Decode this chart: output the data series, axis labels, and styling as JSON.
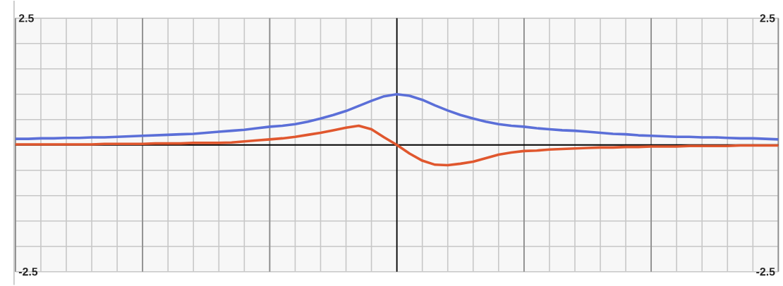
{
  "chart_data": {
    "type": "line",
    "categories": [
      null,
      null,
      null,
      null,
      null,
      null,
      null,
      null,
      null,
      null,
      null,
      null,
      null,
      null,
      null,
      null,
      null,
      null,
      null,
      null,
      null,
      null,
      null,
      null,
      null,
      null,
      null,
      null,
      null,
      null,
      null,
      null,
      null,
      null,
      null,
      null,
      null,
      null,
      null,
      null,
      null,
      null,
      null,
      null,
      null,
      null,
      null,
      null,
      null,
      null,
      null,
      null,
      null,
      null,
      null,
      null,
      null,
      null,
      null,
      null,
      null
    ],
    "series": [
      {
        "color": "#5b6fd8",
        "values": [
          0.12,
          0.12,
          0.13,
          0.13,
          0.14,
          0.14,
          0.15,
          0.15,
          0.16,
          0.17,
          0.18,
          0.19,
          0.2,
          0.21,
          0.22,
          0.24,
          0.26,
          0.28,
          0.3,
          0.33,
          0.36,
          0.38,
          0.41,
          0.46,
          0.52,
          0.59,
          0.67,
          0.77,
          0.87,
          0.96,
          1.0,
          0.97,
          0.89,
          0.78,
          0.68,
          0.59,
          0.52,
          0.46,
          0.41,
          0.38,
          0.36,
          0.33,
          0.31,
          0.29,
          0.28,
          0.26,
          0.24,
          0.22,
          0.21,
          0.19,
          0.18,
          0.17,
          0.16,
          0.16,
          0.15,
          0.15,
          0.14,
          0.13,
          0.13,
          0.12,
          0.11
        ]
      },
      {
        "color": "#e0572e",
        "values": [
          0.01,
          0.01,
          0.01,
          0.01,
          0.01,
          0.01,
          0.01,
          0.02,
          0.02,
          0.02,
          0.02,
          0.03,
          0.03,
          0.03,
          0.04,
          0.04,
          0.04,
          0.05,
          0.07,
          0.09,
          0.11,
          0.13,
          0.16,
          0.2,
          0.24,
          0.29,
          0.34,
          0.38,
          0.31,
          0.15,
          0,
          -0.17,
          -0.31,
          -0.39,
          -0.4,
          -0.37,
          -0.33,
          -0.26,
          -0.19,
          -0.15,
          -0.12,
          -0.11,
          -0.09,
          -0.08,
          -0.07,
          -0.06,
          -0.05,
          -0.05,
          -0.04,
          -0.04,
          -0.03,
          -0.03,
          -0.03,
          -0.02,
          -0.02,
          -0.02,
          -0.02,
          -0.01,
          -0.01,
          -0.01,
          -0.01
        ]
      }
    ],
    "ylim": [
      -2.5,
      2.5
    ],
    "yticks": [
      -2.5,
      {
        "value": -2,
        "label": null
      },
      {
        "value": -1.5,
        "label": null
      },
      {
        "value": -1,
        "label": null
      },
      {
        "value": -0.5,
        "label": null
      },
      {
        "value": 0,
        "label": null
      },
      {
        "value": 0.5,
        "label": null
      },
      {
        "value": 1,
        "label": null
      },
      {
        "value": 1.5,
        "label": null
      },
      {
        "value": 2,
        "label": null
      },
      2.5
    ],
    "y2lim": [
      -2.5,
      2.5
    ],
    "y2ticks": [
      -2.5,
      2.5
    ],
    "grid": true
  }
}
